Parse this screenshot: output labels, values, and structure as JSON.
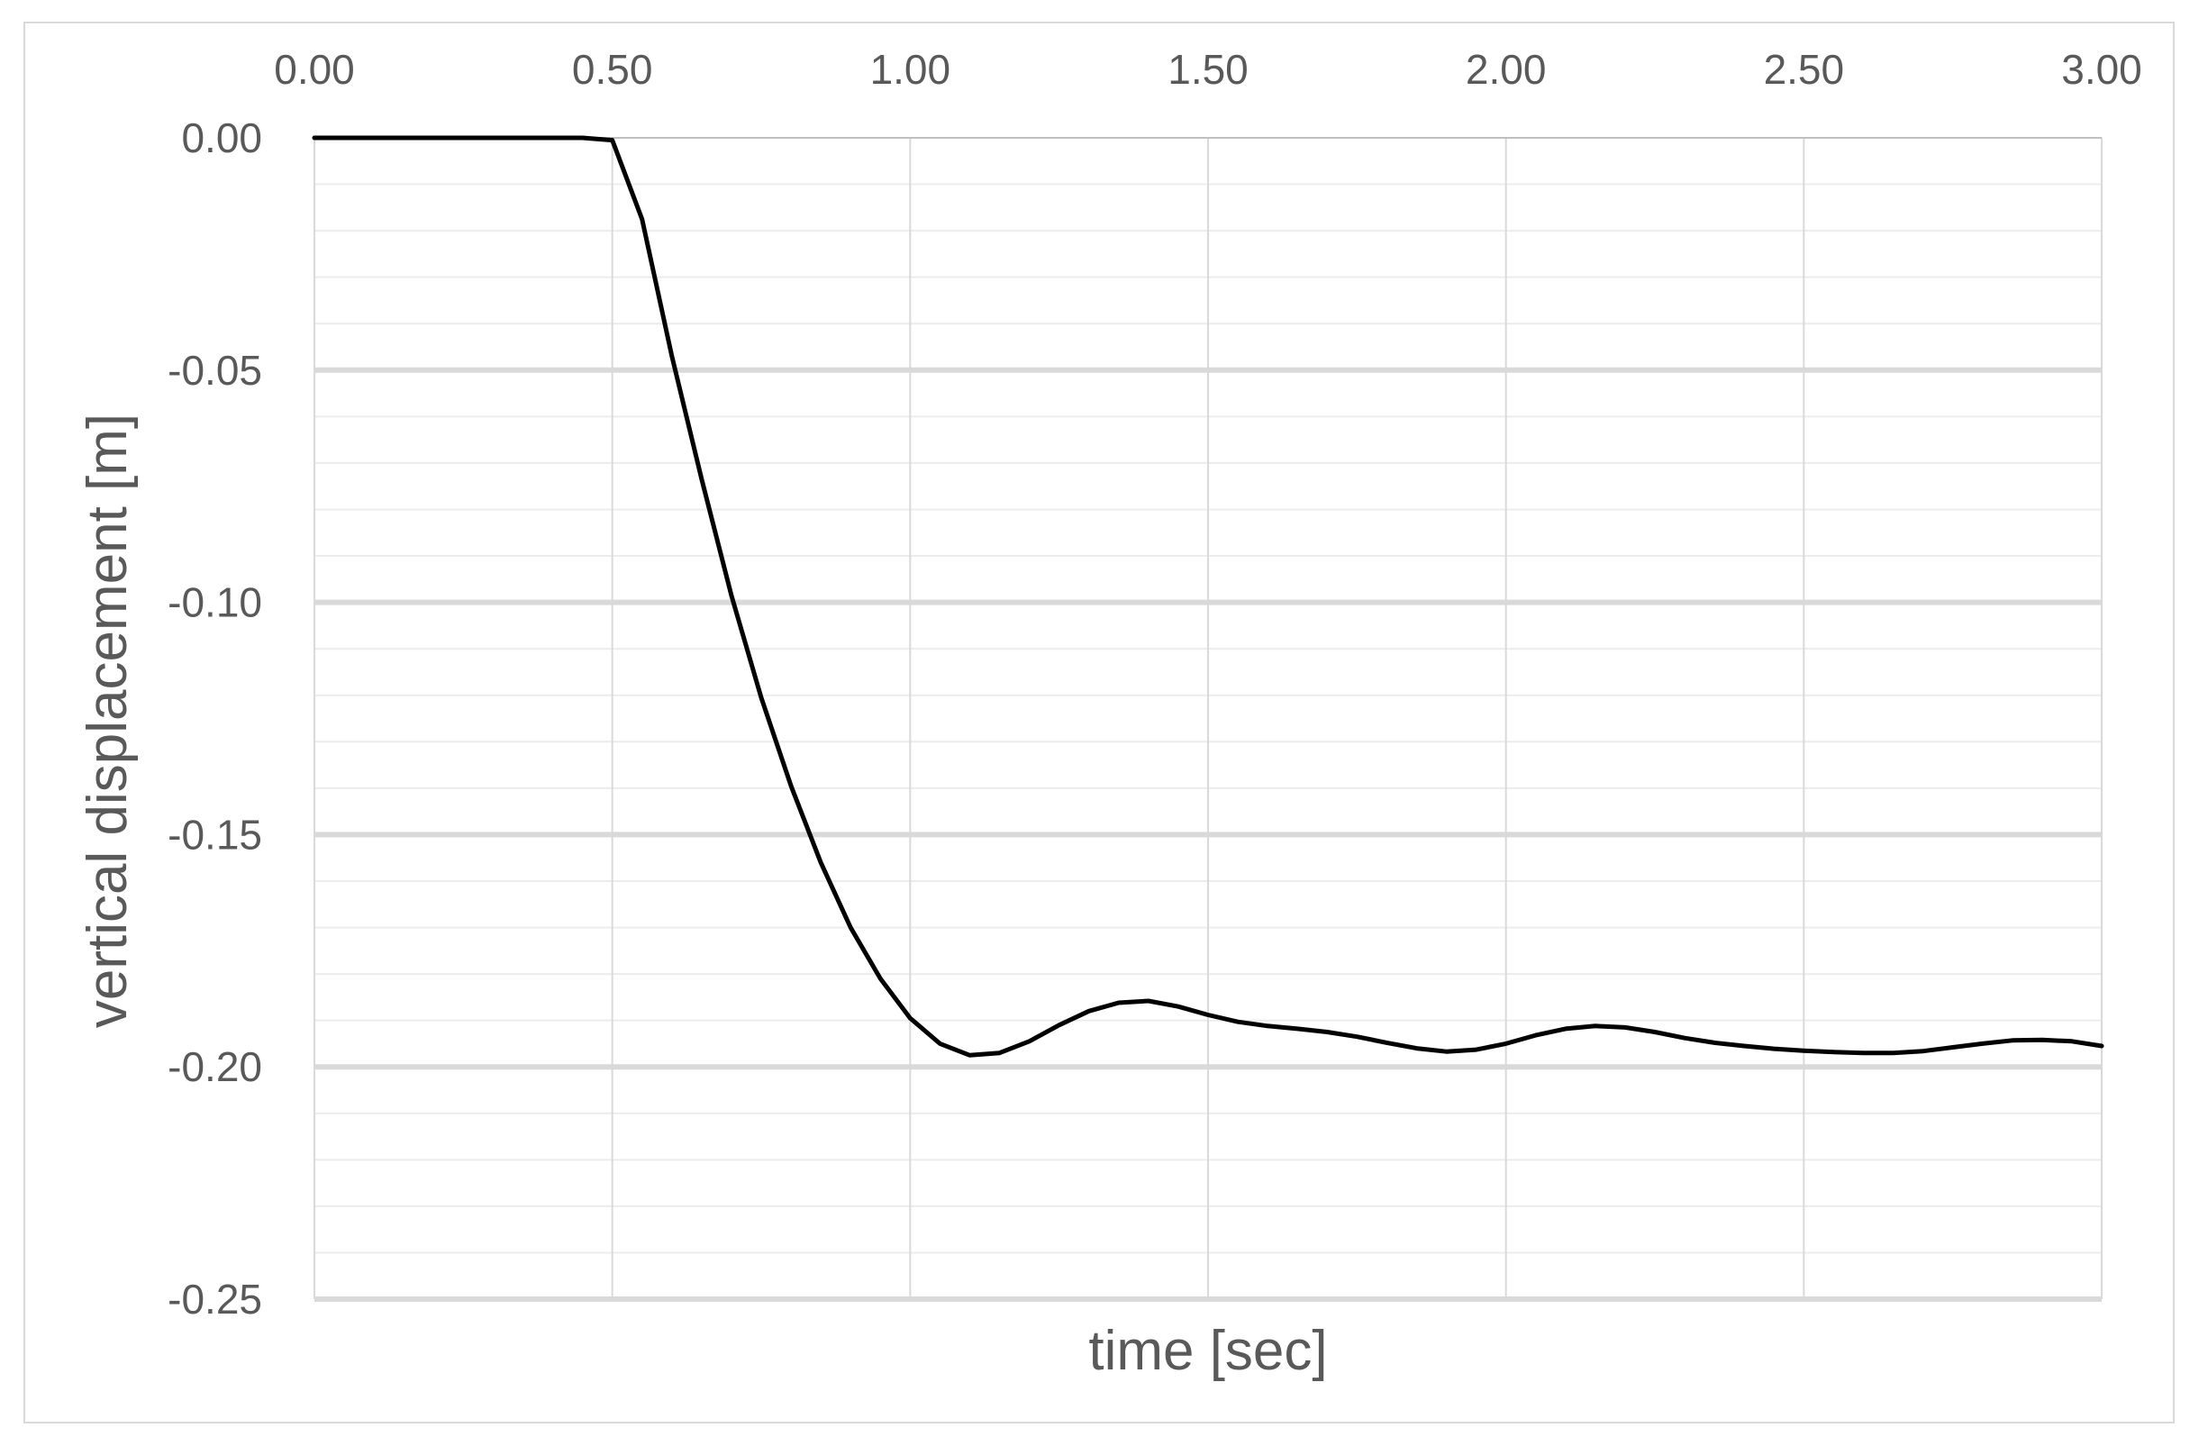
{
  "chart_data": {
    "type": "line",
    "xlabel": "time [sec]",
    "ylabel": "vertical displacement [m]",
    "xlim": [
      0,
      3
    ],
    "ylim": [
      -0.25,
      0
    ],
    "x_ticks": [
      "0.00",
      "0.50",
      "1.00",
      "1.50",
      "2.00",
      "2.50",
      "3.00"
    ],
    "y_ticks": [
      "0.00",
      "-0.05",
      "-0.10",
      "-0.15",
      "-0.20",
      "-0.25"
    ],
    "x_axis_position": "top",
    "grid": true,
    "legend": "none",
    "line_color": "#000000",
    "series": [
      {
        "x": [
          0.0,
          0.1,
          0.2,
          0.3,
          0.4,
          0.45,
          0.5,
          0.55,
          0.6,
          0.65,
          0.7,
          0.75,
          0.8,
          0.85,
          0.9,
          0.95,
          1.0,
          1.05,
          1.1,
          1.15,
          1.2,
          1.25,
          1.3,
          1.35,
          1.4,
          1.45,
          1.5,
          1.55,
          1.6,
          1.65,
          1.7,
          1.75,
          1.8,
          1.85,
          1.9,
          1.95,
          2.0,
          2.05,
          2.1,
          2.15,
          2.2,
          2.25,
          2.3,
          2.35,
          2.4,
          2.45,
          2.5,
          2.55,
          2.6,
          2.65,
          2.7,
          2.75,
          2.8,
          2.85,
          2.9,
          2.95,
          3.0
        ],
        "values": [
          0,
          0,
          0,
          0,
          0,
          0,
          -0.0005,
          -0.0175,
          -0.047,
          -0.0735,
          -0.0985,
          -0.1205,
          -0.1395,
          -0.156,
          -0.17,
          -0.181,
          -0.1895,
          -0.195,
          -0.1975,
          -0.197,
          -0.1945,
          -0.191,
          -0.188,
          -0.1862,
          -0.1858,
          -0.187,
          -0.1888,
          -0.1903,
          -0.1912,
          -0.1918,
          -0.1925,
          -0.1935,
          -0.1948,
          -0.196,
          -0.1967,
          -0.1963,
          -0.195,
          -0.1932,
          -0.1918,
          -0.1912,
          -0.1915,
          -0.1925,
          -0.1938,
          -0.1948,
          -0.1955,
          -0.1961,
          -0.1965,
          -0.1968,
          -0.197,
          -0.197,
          -0.1966,
          -0.1958,
          -0.195,
          -0.1943,
          -0.1942,
          -0.1945,
          -0.1955
        ]
      }
    ]
  }
}
